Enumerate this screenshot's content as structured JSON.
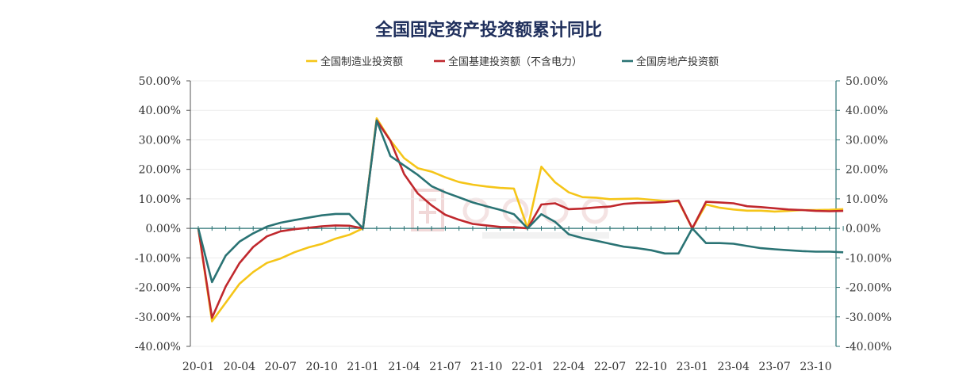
{
  "chart_data": {
    "type": "line",
    "title": "全国固定资产投资额累计同比",
    "legend_position": "top",
    "grid": true,
    "y_left_range": [
      -40,
      50
    ],
    "y_right_range": [
      -40,
      50
    ],
    "y_ticks": [
      "50.00%",
      "40.00%",
      "30.00%",
      "20.00%",
      "10.00%",
      "0.00%",
      "-10.00%",
      "-20.00%",
      "-30.00%",
      "-40.00%"
    ],
    "x_tick_labels": [
      "20-01",
      "20-04",
      "20-07",
      "20-10",
      "21-01",
      "21-04",
      "21-07",
      "21-10",
      "22-01",
      "22-04",
      "22-07",
      "22-10",
      "23-01",
      "23-04",
      "23-07",
      "23-10"
    ],
    "x": [
      "20-01",
      "20-02",
      "20-03",
      "20-04",
      "20-05",
      "20-06",
      "20-07",
      "20-08",
      "20-09",
      "20-10",
      "20-11",
      "20-12",
      "21-01",
      "21-02",
      "21-03",
      "21-04",
      "21-05",
      "21-06",
      "21-07",
      "21-08",
      "21-09",
      "21-10",
      "21-11",
      "21-12",
      "22-01",
      "22-02",
      "22-03",
      "22-04",
      "22-05",
      "22-06",
      "22-07",
      "22-08",
      "22-09",
      "22-10",
      "22-11",
      "22-12",
      "23-01",
      "23-02",
      "23-03",
      "23-04",
      "23-05",
      "23-06",
      "23-07",
      "23-08",
      "23-09",
      "23-10",
      "23-11",
      "23-12"
    ],
    "series": [
      {
        "name": "全国制造业投资额",
        "color": "#f5c518",
        "values": [
          0,
          -31.5,
          -25.2,
          -18.8,
          -14.8,
          -11.7,
          -10.2,
          -8.1,
          -6.5,
          -5.3,
          -3.5,
          -2.2,
          0,
          37.3,
          29.8,
          23.8,
          20.4,
          19.2,
          17.3,
          15.7,
          14.8,
          14.2,
          13.7,
          13.5,
          0,
          20.9,
          15.6,
          12.2,
          10.6,
          10.4,
          9.9,
          10.0,
          10.1,
          9.7,
          9.3,
          9.1,
          0,
          8.1,
          7.0,
          6.4,
          6.0,
          6.0,
          5.7,
          5.9,
          6.2,
          6.2,
          6.3,
          6.5
        ]
      },
      {
        "name": "全国基建投资额（不含电力）",
        "color": "#c0282d",
        "values": [
          0,
          -30.3,
          -19.7,
          -11.8,
          -6.3,
          -2.7,
          -1.0,
          -0.3,
          0.2,
          0.7,
          1.0,
          0.9,
          0,
          36.6,
          29.7,
          18.4,
          11.8,
          7.8,
          4.6,
          2.9,
          1.5,
          1.0,
          0.5,
          0.4,
          0,
          8.1,
          8.5,
          6.5,
          6.7,
          7.1,
          7.4,
          8.3,
          8.6,
          8.7,
          8.9,
          9.4,
          0,
          9.0,
          8.8,
          8.5,
          7.5,
          7.2,
          6.8,
          6.4,
          6.2,
          5.9,
          5.8,
          5.9
        ]
      },
      {
        "name": "全国房地产投资额",
        "color": "#2a7374",
        "values": [
          0,
          -18.2,
          -9.2,
          -4.5,
          -1.7,
          0.6,
          1.9,
          2.8,
          3.6,
          4.4,
          4.9,
          4.9,
          0,
          36.5,
          24.5,
          21.3,
          18.1,
          14.3,
          12.2,
          10.5,
          8.8,
          7.5,
          6.3,
          4.8,
          0,
          4.8,
          2.2,
          -2.0,
          -3.3,
          -4.2,
          -5.2,
          -6.2,
          -6.7,
          -7.4,
          -8.5,
          -8.5,
          0,
          -5.0,
          -5.0,
          -5.2,
          -6.0,
          -6.7,
          -7.1,
          -7.4,
          -7.7,
          -7.9,
          -7.9,
          -8.1
        ]
      }
    ]
  }
}
